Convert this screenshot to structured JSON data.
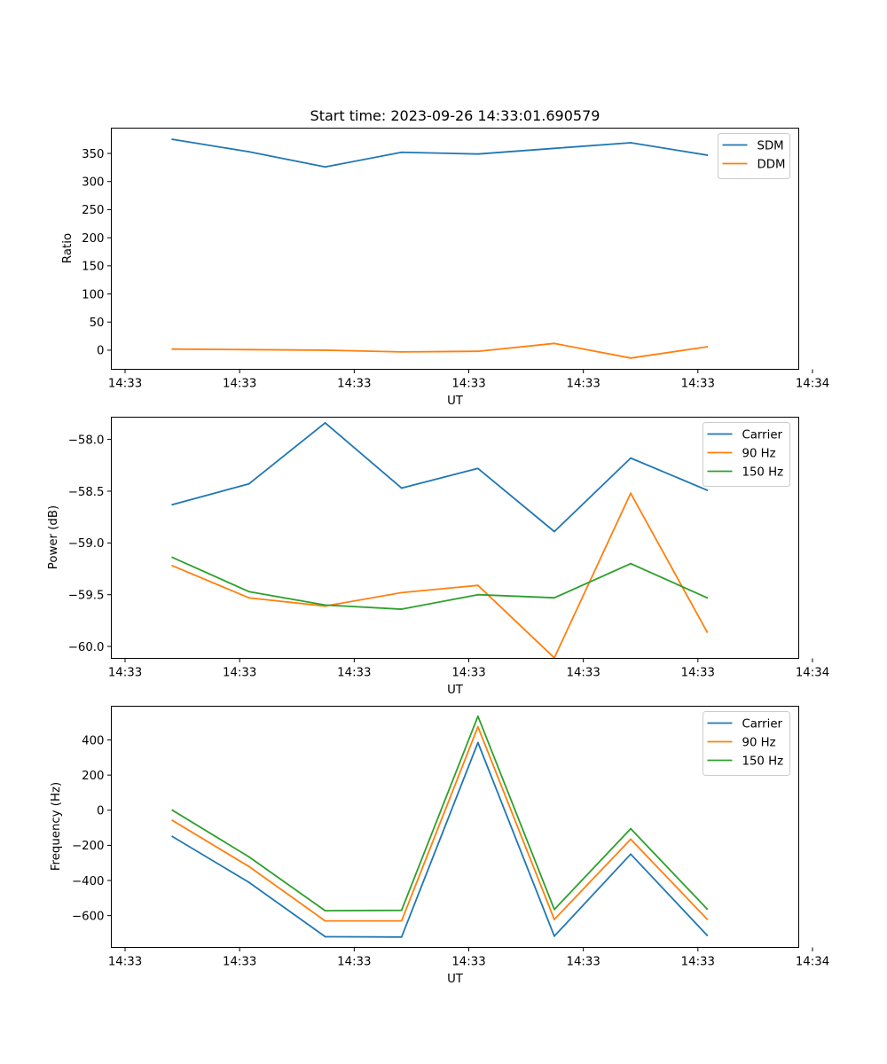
{
  "chart_data": [
    {
      "type": "line",
      "title": "Start time: 2023-09-26 14:33:01.690579",
      "xlabel": "UT",
      "ylabel": "Ratio",
      "x": [
        1,
        2,
        3,
        4,
        5,
        6,
        7,
        8
      ],
      "xlim": [
        0.2,
        9.2
      ],
      "x_ticks": [
        0.38,
        1.88,
        3.38,
        4.88,
        6.38,
        7.88,
        9.38
      ],
      "x_tick_labels": [
        "14:33",
        "14:33",
        "14:33",
        "14:33",
        "14:33",
        "14:33",
        "14:34"
      ],
      "ylim": [
        -34,
        395
      ],
      "y_ticks": [
        0,
        50,
        100,
        150,
        200,
        250,
        300,
        350
      ],
      "y_tick_labels": [
        "0",
        "50",
        "100",
        "150",
        "200",
        "250",
        "300",
        "350"
      ],
      "legend_position": "top-right",
      "series": [
        {
          "name": "SDM",
          "color": "#1f77b4",
          "values": [
            375,
            353,
            326,
            352,
            349,
            359,
            369,
            347
          ]
        },
        {
          "name": "DDM",
          "color": "#ff7f0e",
          "values": [
            2,
            1,
            0,
            -3,
            -2,
            12,
            -14,
            6
          ]
        }
      ]
    },
    {
      "type": "line",
      "title": "",
      "xlabel": "UT",
      "ylabel": "Power (dB)",
      "x": [
        1,
        2,
        3,
        4,
        5,
        6,
        7,
        8
      ],
      "xlim": [
        0.2,
        9.2
      ],
      "x_ticks": [
        0.38,
        1.88,
        3.38,
        4.88,
        6.38,
        7.88,
        9.38
      ],
      "x_tick_labels": [
        "14:33",
        "14:33",
        "14:33",
        "14:33",
        "14:33",
        "14:33",
        "14:34"
      ],
      "ylim": [
        -60.115,
        -57.785
      ],
      "y_ticks": [
        -60.0,
        -59.5,
        -59.0,
        -58.5,
        -58.0
      ],
      "y_tick_labels": [
        "−60.0",
        "−59.5",
        "−59.0",
        "−58.5",
        "−58.0"
      ],
      "legend_position": "top-right",
      "series": [
        {
          "name": "Carrier",
          "color": "#1f77b4",
          "values": [
            -58.63,
            -58.43,
            -57.84,
            -58.47,
            -58.28,
            -58.89,
            -58.18,
            -58.49
          ]
        },
        {
          "name": "90 Hz",
          "color": "#ff7f0e",
          "values": [
            -59.22,
            -59.53,
            -59.61,
            -59.48,
            -59.41,
            -60.11,
            -58.52,
            -59.86
          ]
        },
        {
          "name": "150 Hz",
          "color": "#2ca02c",
          "values": [
            -59.14,
            -59.47,
            -59.6,
            -59.64,
            -59.5,
            -59.53,
            -59.2,
            -59.53
          ]
        }
      ]
    },
    {
      "type": "line",
      "title": "",
      "xlabel": "UT",
      "ylabel": "Frequency (Hz)",
      "x": [
        1,
        2,
        3,
        4,
        5,
        6,
        7,
        8
      ],
      "xlim": [
        0.2,
        9.2
      ],
      "x_ticks": [
        0.38,
        1.88,
        3.38,
        4.88,
        6.38,
        7.88,
        9.38
      ],
      "x_tick_labels": [
        "14:33",
        "14:33",
        "14:33",
        "14:33",
        "14:33",
        "14:33",
        "14:34"
      ],
      "ylim": [
        -781,
        592
      ],
      "y_ticks": [
        -600,
        -400,
        -200,
        0,
        200,
        400
      ],
      "y_tick_labels": [
        "−600",
        "−400",
        "−200",
        "0",
        "200",
        "400"
      ],
      "legend_position": "top-right",
      "series": [
        {
          "name": "Carrier",
          "color": "#1f77b4",
          "values": [
            -150,
            -410,
            -720,
            -722,
            385,
            -717,
            -250,
            -712
          ]
        },
        {
          "name": "90 Hz",
          "color": "#ff7f0e",
          "values": [
            -58,
            -320,
            -630,
            -630,
            475,
            -622,
            -165,
            -620
          ]
        },
        {
          "name": "150 Hz",
          "color": "#2ca02c",
          "values": [
            0,
            -265,
            -572,
            -570,
            535,
            -565,
            -105,
            -562
          ]
        }
      ]
    }
  ]
}
